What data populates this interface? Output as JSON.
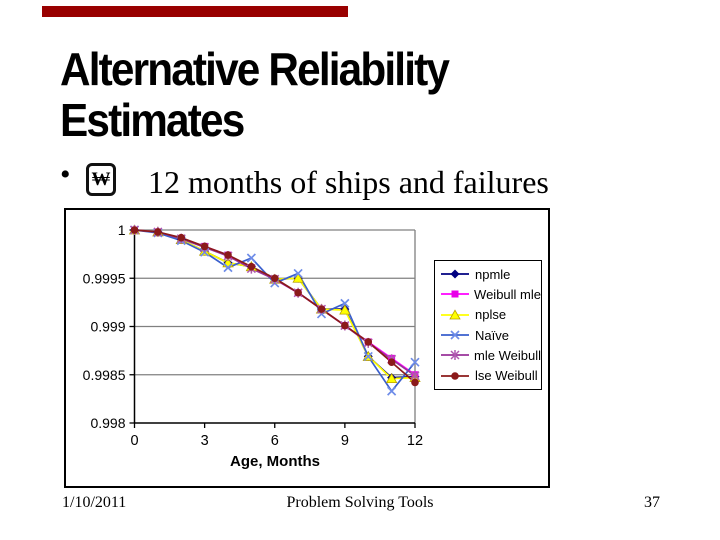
{
  "header": {
    "accent_color": "#990000",
    "title_lines": [
      "Alternative Reliability",
      "Estimates"
    ]
  },
  "bullet": {
    "marker": "•",
    "icon_glyph": "₩",
    "text": "12 months of ships and failures"
  },
  "chart_data": {
    "type": "line",
    "xlabel": "Age, Months",
    "ylabel": "",
    "x": [
      0,
      1,
      2,
      3,
      4,
      5,
      6,
      7,
      8,
      9,
      10,
      11,
      12
    ],
    "xlim": [
      0,
      12
    ],
    "ylim": [
      0.998,
      1
    ],
    "xticks": [
      0,
      3,
      6,
      9,
      12
    ],
    "xtick_labels": [
      "0",
      "3",
      "6",
      "9",
      "12"
    ],
    "yticks": [
      1,
      0.9995,
      0.999,
      0.9985,
      0.998
    ],
    "ytick_labels": [
      "1",
      "0.9995",
      "0.999",
      "0.9985",
      "0.998"
    ],
    "grid": true,
    "legend_position": "right",
    "series": [
      {
        "name": "npmle",
        "color": "#000080",
        "marker": "diamond",
        "marker_color": "#000080",
        "values": [
          1,
          0.99998,
          0.9999,
          0.99978,
          0.99966,
          0.99962,
          0.99949,
          0.9995,
          0.99918,
          0.99918,
          0.99869,
          0.99847,
          0.99848
        ]
      },
      {
        "name": "Weibull mle",
        "color": "#FF00FF",
        "marker": "square",
        "marker_color": "#E800E8",
        "values": [
          1,
          0.99998,
          0.99991,
          0.99983,
          0.99974,
          0.99961,
          0.99949,
          0.99935,
          0.99918,
          0.99901,
          0.99884,
          0.99867,
          0.9985
        ]
      },
      {
        "name": "nplse",
        "color": "#FFFF00",
        "marker": "triangle",
        "marker_color": "#FFFF00",
        "values": [
          1,
          0.99998,
          0.9999,
          0.99978,
          0.99966,
          0.99962,
          0.99949,
          0.9995,
          0.99918,
          0.99917,
          0.99869,
          0.99846,
          0.99847
        ]
      },
      {
        "name": "Naïve",
        "color": "#3A5FCD",
        "marker": "x",
        "marker_color": "#6E8CE8",
        "values": [
          1,
          0.99997,
          0.99989,
          0.99977,
          0.99961,
          0.99971,
          0.99945,
          0.99955,
          0.99913,
          0.99924,
          0.99869,
          0.99833,
          0.99863
        ]
      },
      {
        "name": "mle Weibull",
        "color": "#993399",
        "marker": "star",
        "marker_color": "#B05AB0",
        "values": [
          1,
          0.99998,
          0.99991,
          0.99982,
          0.99973,
          0.9996,
          0.99949,
          0.99935,
          0.99918,
          0.99901,
          0.99883,
          0.99866,
          0.99849
        ]
      },
      {
        "name": "lse Weibull",
        "color": "#8B1A1A",
        "marker": "circle",
        "marker_color": "#8B1A1A",
        "values": [
          1,
          0.99998,
          0.99992,
          0.99983,
          0.99974,
          0.99962,
          0.9995,
          0.99935,
          0.99918,
          0.99901,
          0.99884,
          0.99863,
          0.99842
        ]
      }
    ]
  },
  "footer": {
    "date": "1/10/2011",
    "center": "Problem Solving Tools",
    "page": "37"
  }
}
